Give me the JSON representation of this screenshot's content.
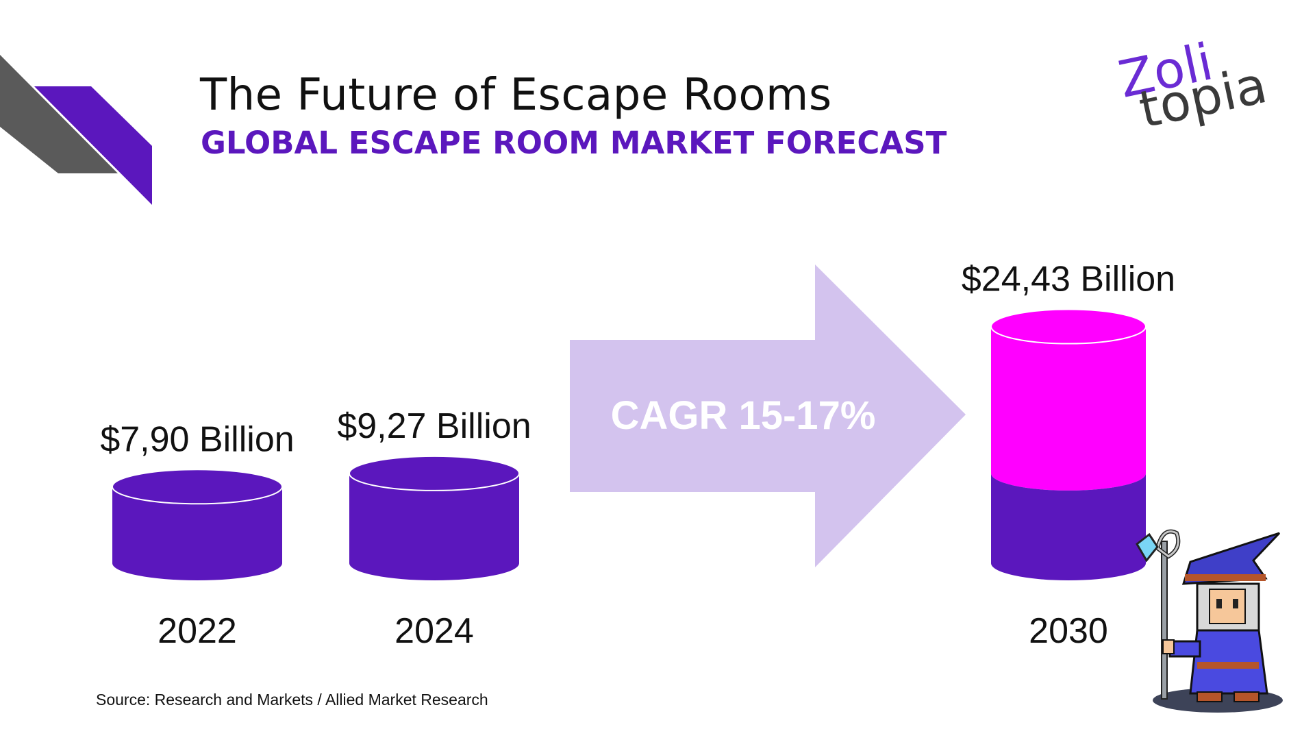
{
  "header": {
    "title": "The Future of Escape Rooms",
    "subtitle": "GLOBAL ESCAPE ROOM MARKET FORECAST"
  },
  "logo": {
    "line1": "Zoli",
    "line2": "topia"
  },
  "source": "Source: Research and Markets / Allied Market Research",
  "arrow_label": "CAGR 15-17%",
  "colors": {
    "purple": "#5b17bd",
    "magenta": "#ff00ff",
    "arrow": "#d3c3ee",
    "gray": "#5a5a5a"
  },
  "chart_data": {
    "type": "bar",
    "categories": [
      "2022",
      "2024",
      "2030"
    ],
    "values": [
      7.9,
      9.27,
      24.43
    ],
    "value_labels": [
      "$7,90 Billion",
      "$9,27 Billion",
      "$24,43 Billion"
    ],
    "units": "Billion USD",
    "annotation": "CAGR 15-17%"
  }
}
